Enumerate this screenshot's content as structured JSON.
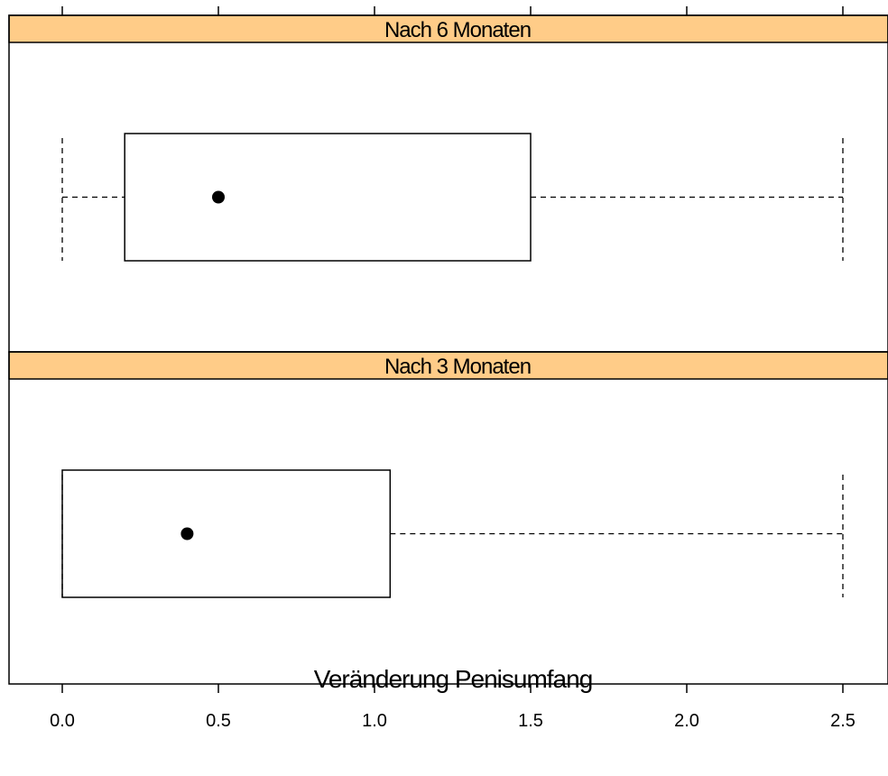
{
  "chart_data": {
    "type": "boxplot",
    "xlabel": "Veränderung Penisumfang",
    "x_ticks": [
      0.0,
      0.5,
      1.0,
      1.5,
      2.0,
      2.5
    ],
    "x_tick_labels": [
      "0.0",
      "0.5",
      "1.0",
      "1.5",
      "2.0",
      "2.5"
    ],
    "xlim": [
      -0.17,
      2.62
    ],
    "grid": false,
    "strip_color": "#FFCC88",
    "box_color": "#000000",
    "panels": [
      {
        "title": "Nach 6 Monaten",
        "whisker_low": 0.0,
        "q1": 0.2,
        "median": 0.5,
        "q3": 1.5,
        "whisker_high": 2.5
      },
      {
        "title": "Nach 3 Monaten",
        "whisker_low": 0.0,
        "q1": 0.0,
        "median": 0.4,
        "q3": 1.05,
        "whisker_high": 2.5
      }
    ]
  }
}
